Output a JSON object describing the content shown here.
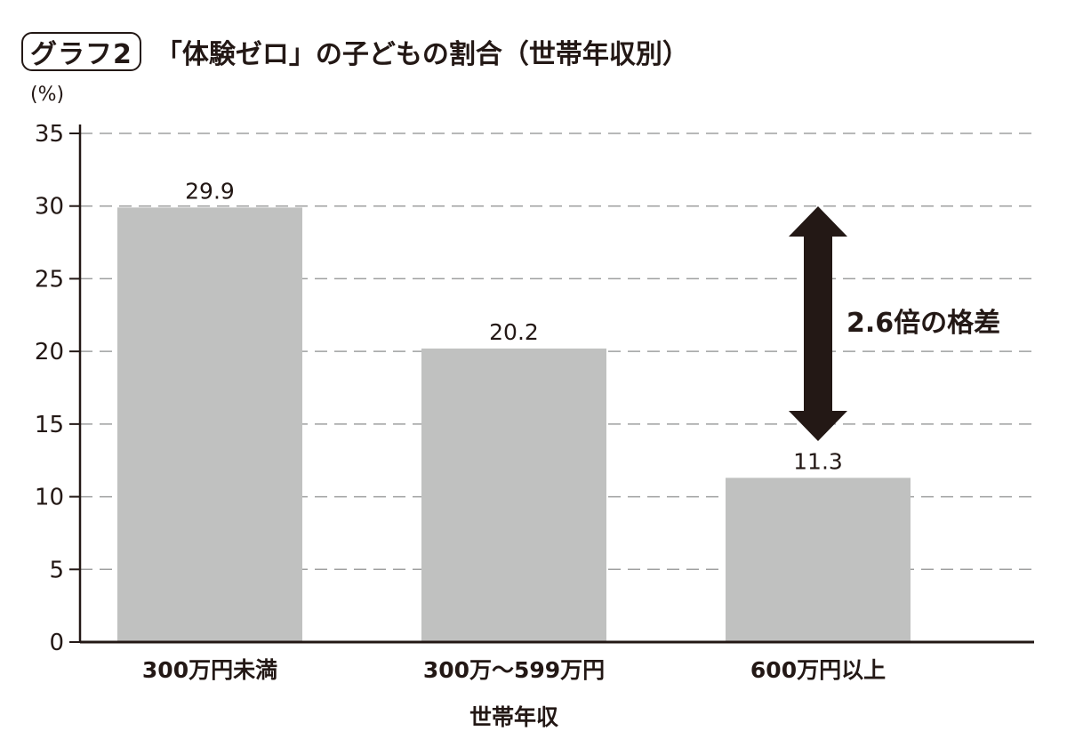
{
  "header": {
    "badge": "グラフ2",
    "title": "「体験ゼロ」の子どもの割合（世帯年収別）"
  },
  "chart_data": {
    "type": "bar",
    "title": "「体験ゼロ」の子どもの割合（世帯年収別）",
    "figure_label": "グラフ2",
    "xlabel": "世帯年収",
    "ylabel": "(%)",
    "categories": [
      "300万円未満",
      "300万〜599万円",
      "600万円以上"
    ],
    "values": [
      29.9,
      20.2,
      11.3
    ],
    "value_labels": [
      "29.9",
      "20.2",
      "11.3"
    ],
    "ylim": [
      0,
      35
    ],
    "yticks": [
      "0",
      "5",
      "10",
      "15",
      "20",
      "25",
      "30",
      "35"
    ],
    "grid": "horizontal dashed",
    "bar_color": "#c0c1c0",
    "annotation": "2.6倍の格差",
    "legend": null
  }
}
